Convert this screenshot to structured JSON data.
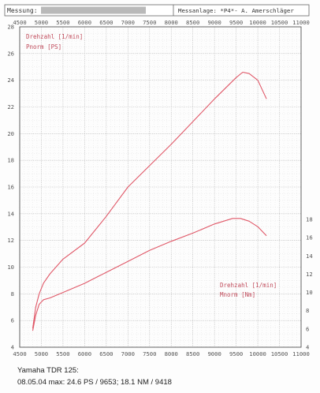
{
  "header": {
    "measurement_label": "Messung:",
    "facility_label": "Messanlage: *P4*- A. Amerschläger"
  },
  "caption": {
    "line1": "Yamaha TDR 125:",
    "line2": "08.05.04   max: 24.6 PS / 9653; 18.1 NM / 9418"
  },
  "colors": {
    "grid": "#b4b4b4",
    "axis": "#555555",
    "power_curve": "#e05868",
    "torque_curve": "#e05868",
    "label_text": "#c04a5a",
    "tick_text": "#555555"
  },
  "chart_data": {
    "type": "line",
    "x_ticks_top": [
      "4500",
      "5000",
      "5500",
      "6000",
      "6500",
      "7000",
      "7500",
      "8000",
      "8500",
      "9000",
      "9500",
      "10000",
      "10500",
      "11000"
    ],
    "x_ticks_bottom": [
      "4500",
      "5000",
      "5500",
      "6000",
      "6500",
      "7000",
      "7500",
      "8000",
      "8500",
      "9000",
      "9500",
      "10000",
      "10500",
      "11000"
    ],
    "left_ticks": [
      "4",
      "6",
      "8",
      "10",
      "12",
      "14",
      "16",
      "18",
      "20",
      "22",
      "24",
      "26",
      "28"
    ],
    "right_ticks": [
      "4",
      "6",
      "8",
      "10",
      "12",
      "14",
      "16",
      "18"
    ],
    "xlim": [
      4500,
      11000
    ],
    "ylim_left": [
      4,
      28
    ],
    "ylim_right": [
      4,
      18
    ],
    "grid": true,
    "legend_top": [
      "Drehzahl [1/min]",
      "Pnorm [PS]"
    ],
    "legend_bottom": [
      "Drehzahl [1/min]",
      "Mnorm [Nm]"
    ],
    "series": [
      {
        "name": "Pnorm [PS]",
        "axis": "left",
        "x": [
          4800,
          4870,
          4950,
          5050,
          5200,
          5500,
          6000,
          6500,
          7000,
          7500,
          8000,
          8500,
          9000,
          9500,
          9653,
          9800,
          10000,
          10200
        ],
        "values": [
          5.4,
          7.0,
          8.0,
          8.8,
          9.5,
          10.6,
          11.8,
          13.8,
          16.0,
          17.6,
          19.2,
          20.9,
          22.6,
          24.2,
          24.6,
          24.5,
          24.0,
          22.6
        ]
      },
      {
        "name": "Mnorm [Nm]",
        "axis": "right",
        "x": [
          4800,
          4870,
          4950,
          5050,
          5200,
          5500,
          6000,
          6500,
          7000,
          7500,
          8000,
          8500,
          9000,
          9418,
          9600,
          9800,
          10000,
          10200
        ],
        "values": [
          5.8,
          7.5,
          8.7,
          9.2,
          9.4,
          10.0,
          11.0,
          12.2,
          13.4,
          14.6,
          15.6,
          16.5,
          17.5,
          18.1,
          18.1,
          17.8,
          17.2,
          16.2
        ]
      }
    ]
  }
}
